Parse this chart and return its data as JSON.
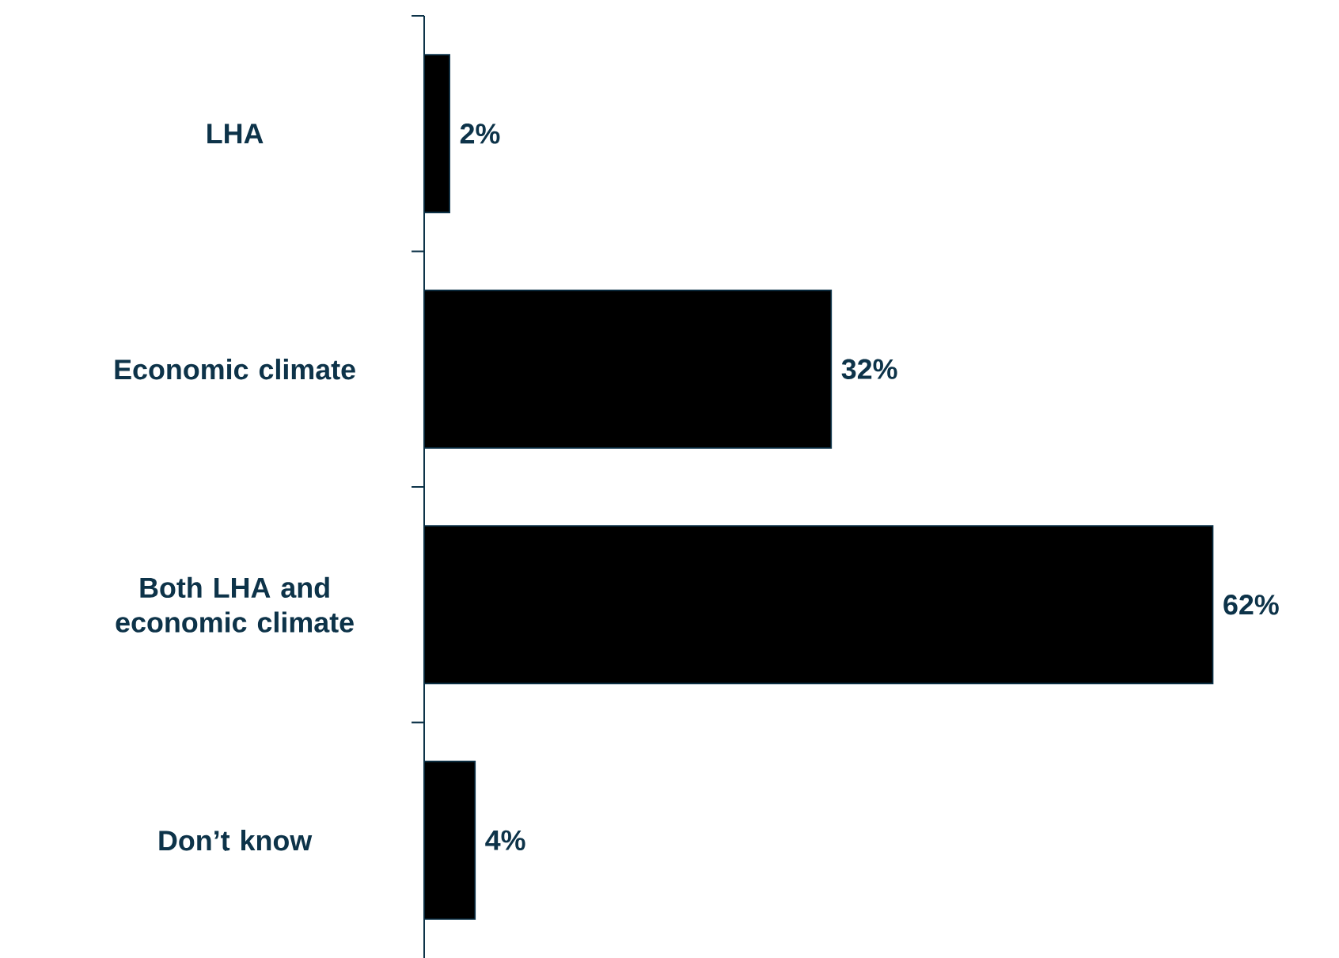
{
  "chart_data": {
    "type": "bar",
    "orientation": "horizontal",
    "categories": [
      "LHA",
      "Economic climate",
      "Both LHA and economic climate",
      "Don’t know"
    ],
    "values": [
      2,
      32,
      62,
      4
    ],
    "value_labels": [
      "2%",
      "32%",
      "62%",
      "4%"
    ],
    "color": "#000000"
  }
}
